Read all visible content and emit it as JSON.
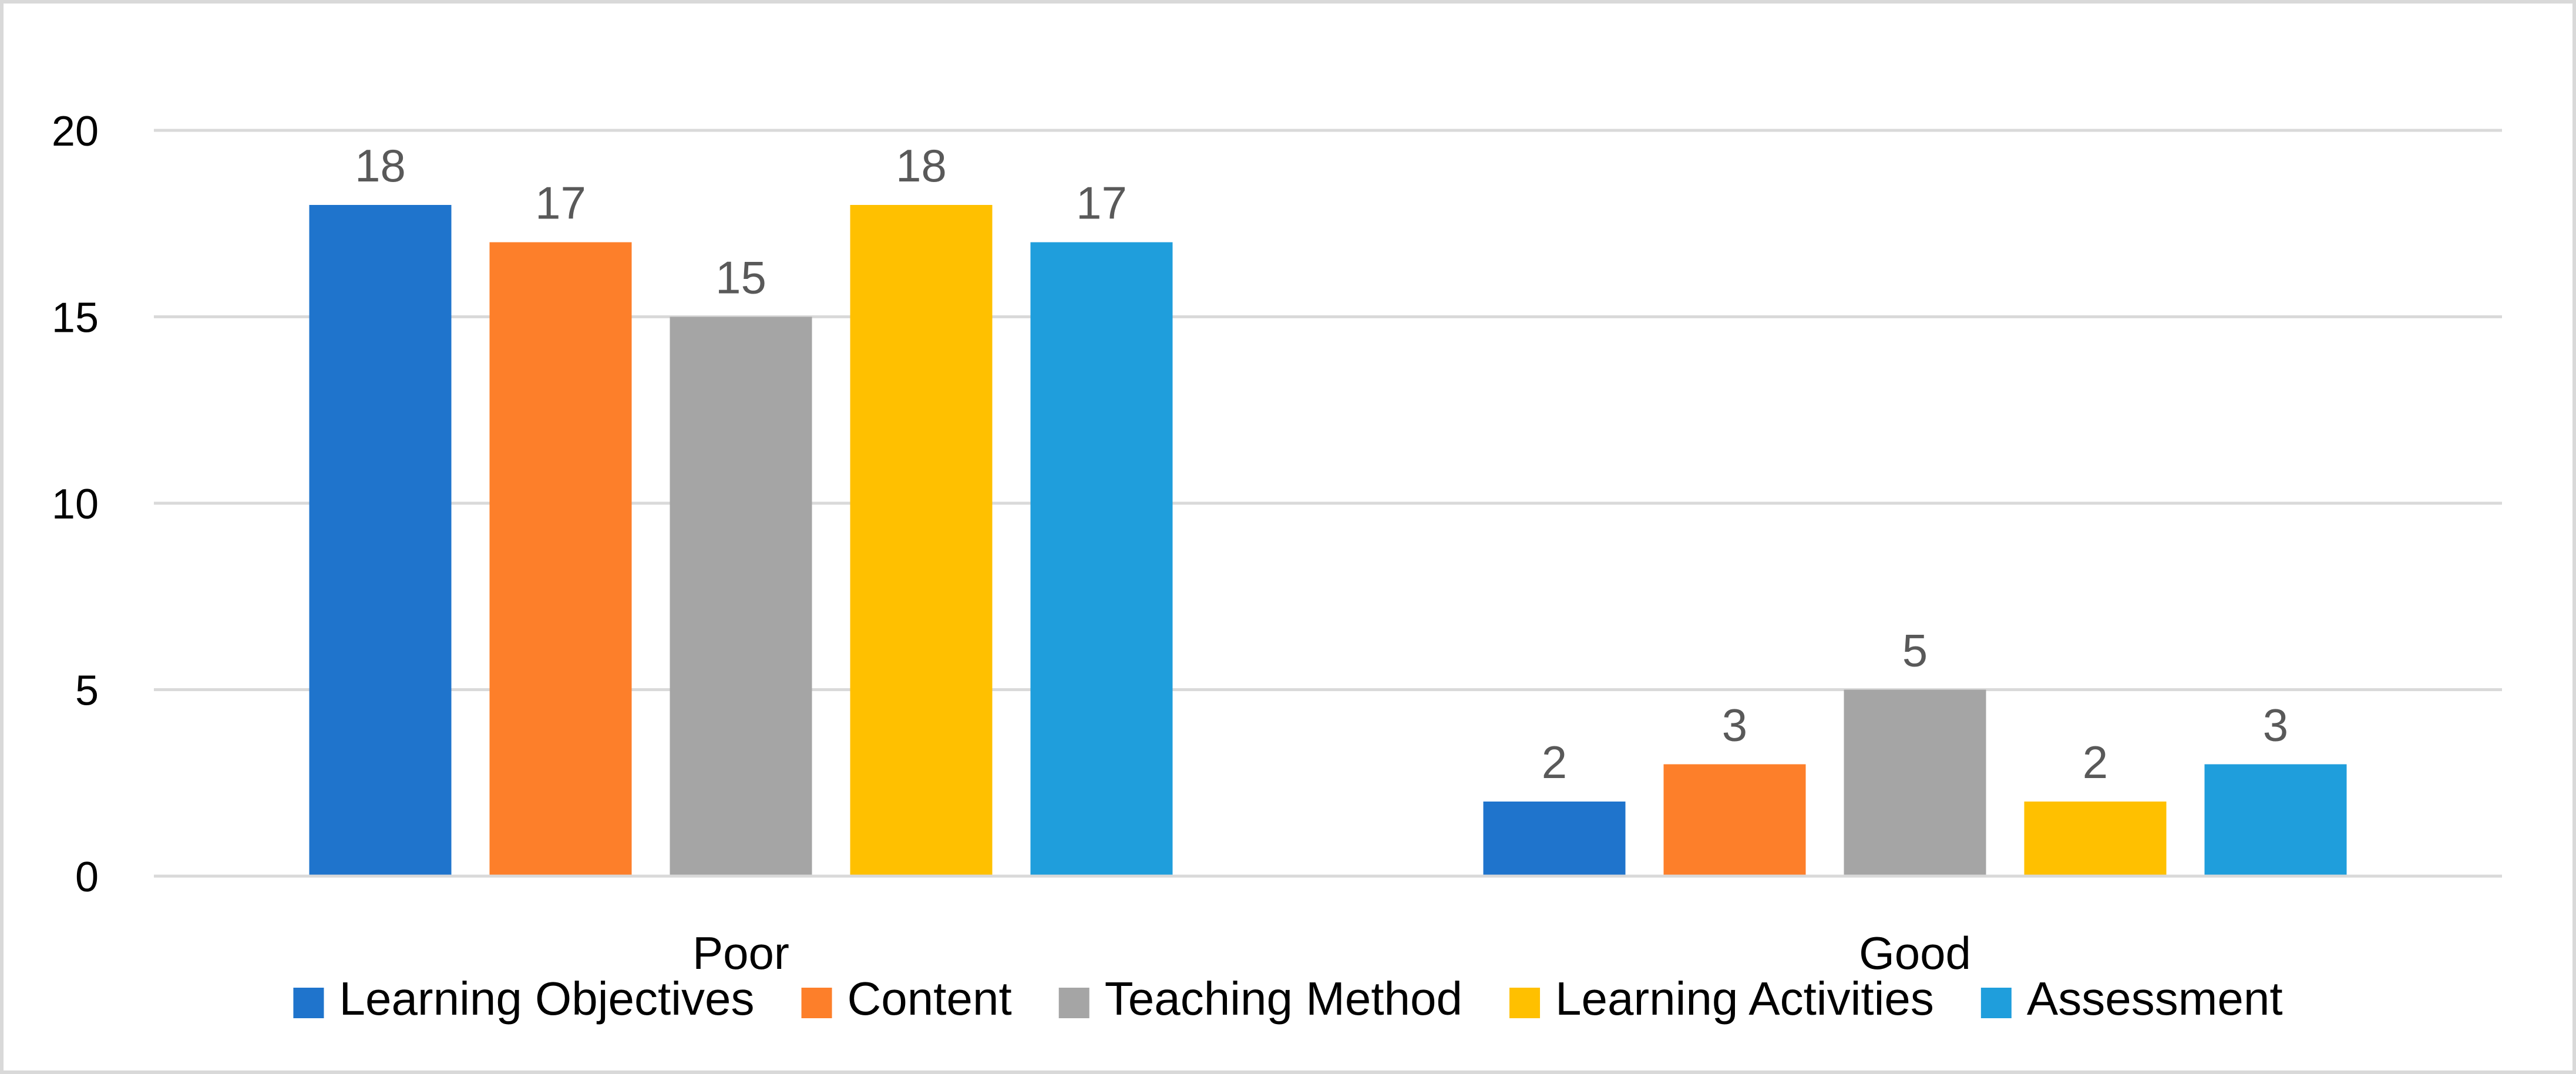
{
  "chart_data": {
    "type": "bar",
    "title": "",
    "xlabel": "",
    "ylabel": "",
    "categories": [
      "Poor",
      "Good"
    ],
    "series": [
      {
        "name": "Learning Objectives",
        "color": "#1F74CC",
        "values": [
          18,
          2
        ]
      },
      {
        "name": "Content",
        "color": "#FD7F2A",
        "values": [
          17,
          3
        ]
      },
      {
        "name": "Teaching Method",
        "color": "#A5A5A5",
        "values": [
          15,
          5
        ]
      },
      {
        "name": "Learning Activities",
        "color": "#FFC000",
        "values": [
          18,
          2
        ]
      },
      {
        "name": "Assessment",
        "color": "#1F9EDC",
        "values": [
          17,
          3
        ]
      }
    ],
    "ylim": [
      0,
      20
    ],
    "yticks": [
      "0",
      "5",
      "10",
      "15",
      "20"
    ],
    "grid": true,
    "legend_position": "bottom",
    "data_labels": true
  }
}
